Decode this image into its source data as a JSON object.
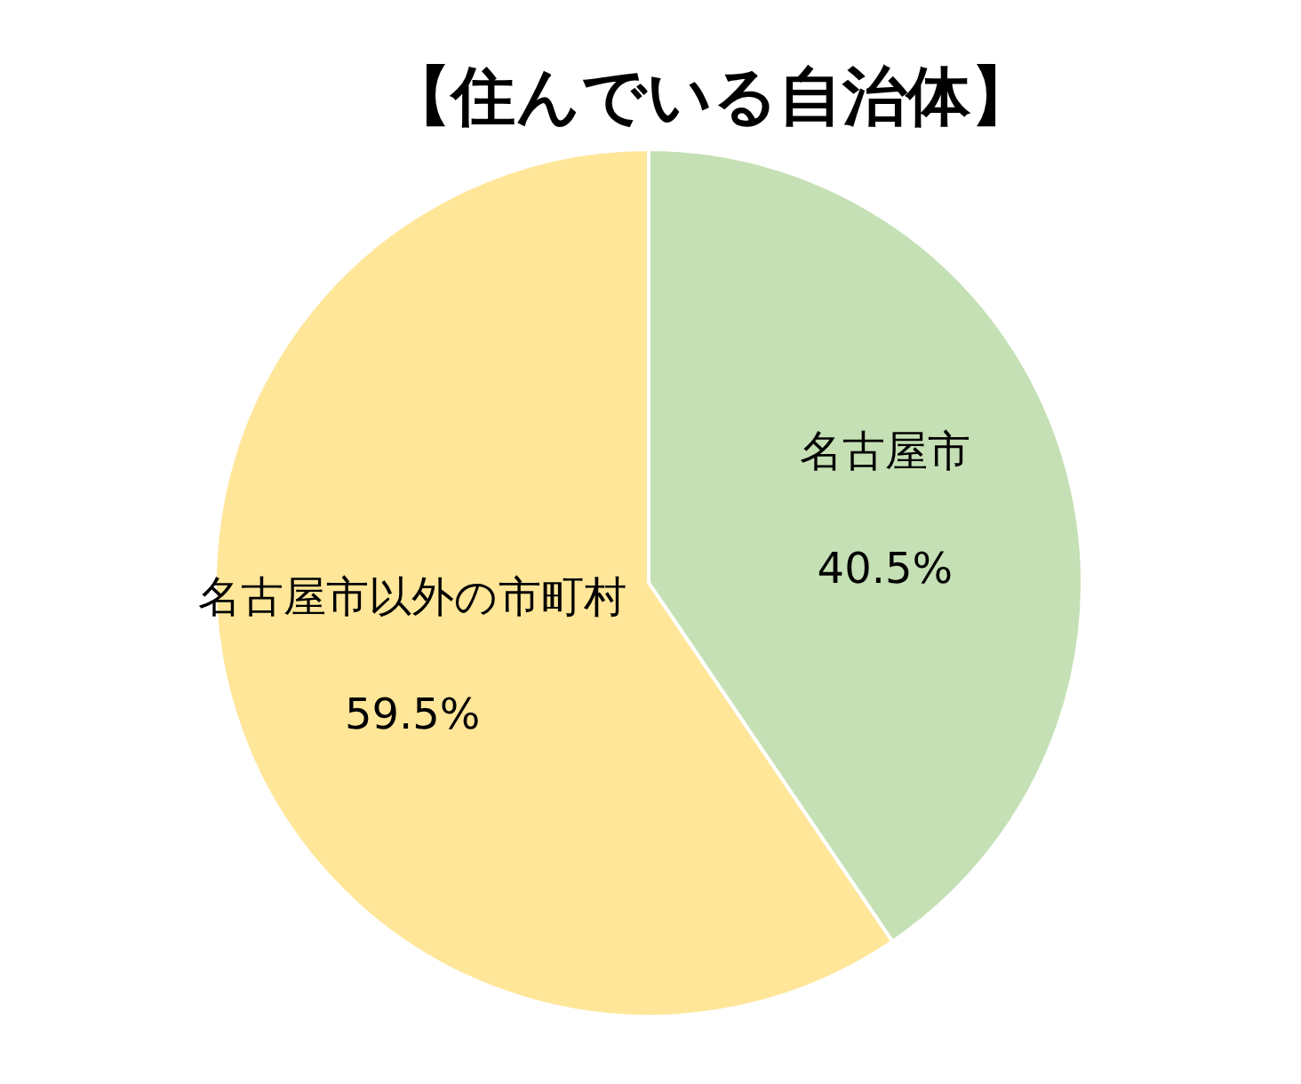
{
  "chart_data": {
    "type": "pie",
    "title": "【住んでいる自治体】",
    "categories": [
      "名古屋市",
      "名古屋市以外の市町村"
    ],
    "values": [
      40.5,
      59.5
    ],
    "value_labels": [
      "40.5%",
      "59.5%"
    ],
    "colors": [
      "#c5e0b4",
      "#ffe699"
    ]
  }
}
